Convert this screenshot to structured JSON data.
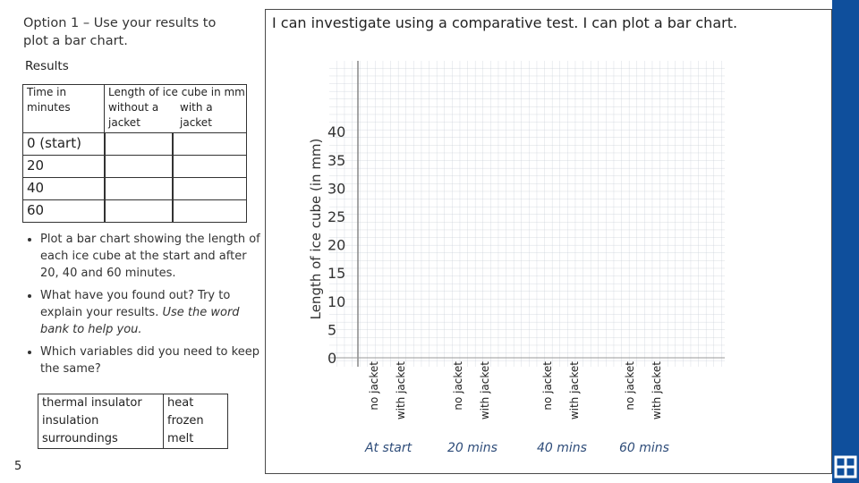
{
  "left": {
    "title": "Option 1 – Use your results to plot a bar chart.",
    "results_label": "Results",
    "table": {
      "time_header": "Time in minutes",
      "length_header": "Length of ice cube in mm",
      "col_without": "without a jacket",
      "col_with": "with a jacket",
      "rows": [
        "0 (start)",
        "20",
        "40",
        "60"
      ]
    },
    "bullets": [
      {
        "text": "Plot a bar chart showing the length of each ice cube at the start and after 20, 40 and 60 minutes."
      },
      {
        "text": "What have you found out? Try to explain your results. ",
        "italic": "Use the word bank to help you."
      },
      {
        "text": "Which variables did you need to keep the same?"
      }
    ],
    "word_bank": [
      [
        "thermal insulator",
        "insulation",
        "surroundings"
      ],
      [
        "heat",
        "frozen",
        "melt"
      ]
    ],
    "page_number": "5"
  },
  "right": {
    "title": "I can investigate using a comparative test. I can plot a bar chart.",
    "y_label": "Length of ice cube (in mm)",
    "y_ticks": [
      "0",
      "5",
      "10",
      "15",
      "20",
      "25",
      "30",
      "35",
      "40"
    ],
    "groups": [
      {
        "label": "At start",
        "bars": [
          "no jacket",
          "with jacket"
        ]
      },
      {
        "label": "20 mins",
        "bars": [
          "no jacket",
          "with jacket"
        ]
      },
      {
        "label": "40 mins",
        "bars": [
          "no jacket",
          "with jacket"
        ]
      },
      {
        "label": "60 mins",
        "bars": [
          "no jacket",
          "with jacket"
        ]
      }
    ]
  }
}
